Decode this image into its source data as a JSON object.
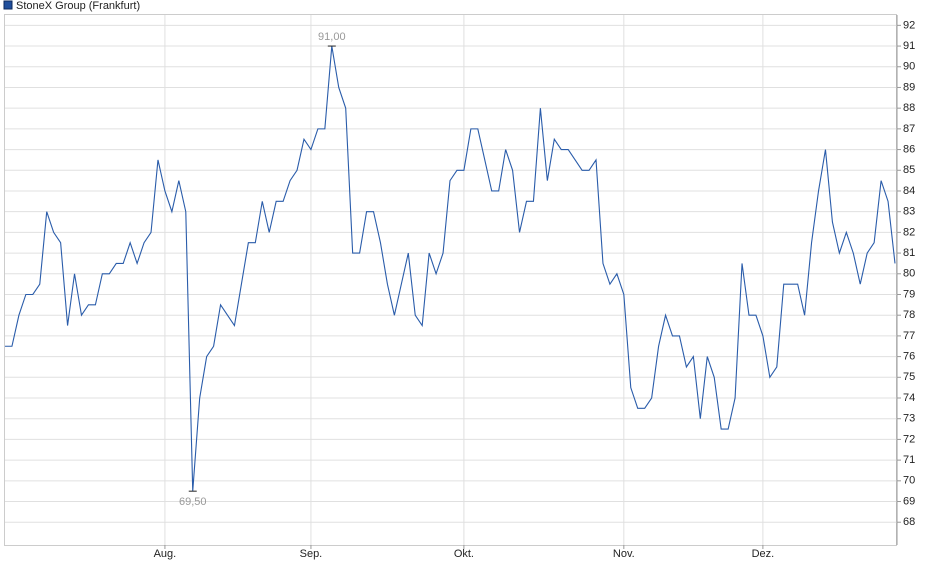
{
  "chart_data": {
    "type": "line",
    "legend": "StoneX Group (Frankfurt)",
    "categories": [
      null,
      null,
      null,
      null,
      null,
      null,
      null,
      null,
      null,
      null,
      null,
      null,
      null,
      null,
      null,
      null,
      null,
      null,
      null,
      null,
      null,
      null,
      null,
      "Aug.",
      null,
      null,
      null,
      null,
      null,
      null,
      null,
      null,
      null,
      null,
      null,
      null,
      null,
      null,
      null,
      null,
      null,
      null,
      null,
      null,
      "Sep.",
      null,
      null,
      null,
      null,
      null,
      null,
      null,
      null,
      null,
      null,
      null,
      null,
      null,
      null,
      null,
      null,
      null,
      null,
      null,
      null,
      null,
      "Okt.",
      null,
      null,
      null,
      null,
      null,
      null,
      null,
      null,
      null,
      null,
      null,
      null,
      null,
      null,
      null,
      null,
      null,
      null,
      null,
      null,
      null,
      null,
      "Nov.",
      null,
      null,
      null,
      null,
      null,
      null,
      null,
      null,
      null,
      null,
      null,
      null,
      null,
      null,
      null,
      null,
      null,
      null,
      null,
      "Dez.",
      null,
      null,
      null,
      null,
      null,
      null,
      null,
      null,
      null,
      null,
      null,
      null,
      null,
      null,
      null,
      null,
      null,
      null,
      null
    ],
    "series": [
      {
        "name": "StoneX Group (Frankfurt)",
        "color": "#2a5caa",
        "values": [
          76.5,
          76.5,
          78,
          79,
          79,
          79.5,
          83,
          82,
          81.5,
          77.5,
          80,
          78,
          78.5,
          78.5,
          80,
          80,
          80.5,
          80.5,
          81.5,
          80.5,
          81.5,
          82,
          85.5,
          84,
          83,
          84.5,
          83,
          69.5,
          74,
          76,
          76.5,
          78.5,
          78,
          77.5,
          79.5,
          81.5,
          81.5,
          83.5,
          82,
          83.5,
          83.5,
          84.5,
          85,
          86.5,
          86,
          87,
          87,
          91,
          89,
          88,
          81,
          81,
          83,
          83,
          81.5,
          79.5,
          78,
          79.5,
          81,
          78,
          77.5,
          81,
          80,
          81,
          84.5,
          85,
          85,
          87,
          87,
          85.5,
          84,
          84,
          86,
          85,
          82,
          83.5,
          83.5,
          88,
          84.5,
          86.5,
          86,
          86,
          85.5,
          85,
          85,
          85.5,
          80.5,
          79.5,
          80,
          79,
          74.5,
          73.5,
          73.5,
          74,
          76.5,
          78,
          77,
          77,
          75.5,
          76,
          73,
          76,
          75,
          72.5,
          72.5,
          74,
          80.5,
          78,
          78,
          77,
          75,
          75.5,
          79.5,
          79.5,
          79.5,
          78,
          81.5,
          84,
          86,
          82.5,
          81,
          82,
          81,
          79.5,
          81,
          81.5,
          84.5,
          83.5,
          80.5
        ],
        "value_labels": [
          null,
          null,
          null,
          null,
          null,
          null,
          null,
          null,
          null,
          null,
          null,
          null,
          null,
          null,
          null,
          null,
          null,
          null,
          null,
          null,
          null,
          null,
          null,
          null,
          null,
          null,
          null,
          "69,50",
          null,
          null,
          null,
          null,
          null,
          null,
          null,
          null,
          null,
          null,
          null,
          null,
          null,
          null,
          null,
          null,
          null,
          null,
          null,
          "91,00",
          null,
          null,
          null,
          null,
          null,
          null,
          null,
          null,
          null,
          null,
          null,
          null,
          null,
          null,
          null,
          null,
          null,
          null,
          null,
          null,
          null,
          null,
          null,
          null,
          null,
          null,
          null,
          null,
          null,
          null,
          null,
          null,
          null,
          null,
          null,
          null,
          null,
          null,
          null,
          null,
          null,
          null,
          null,
          null,
          null,
          null,
          null,
          null,
          null,
          null,
          null,
          null,
          null,
          null,
          null,
          null,
          null,
          null,
          null,
          null,
          null,
          null,
          null,
          null,
          null,
          null,
          null,
          null,
          null,
          null,
          null,
          null,
          null,
          null,
          null,
          null,
          null,
          null,
          null,
          null,
          null
        ]
      }
    ],
    "ylim": [
      66.9,
      92.5
    ],
    "yticks": [
      68,
      69,
      70,
      71,
      72,
      73,
      74,
      75,
      76,
      77,
      78,
      79,
      80,
      81,
      82,
      83,
      84,
      85,
      86,
      87,
      88,
      89,
      90,
      91,
      92
    ],
    "grid": true
  }
}
